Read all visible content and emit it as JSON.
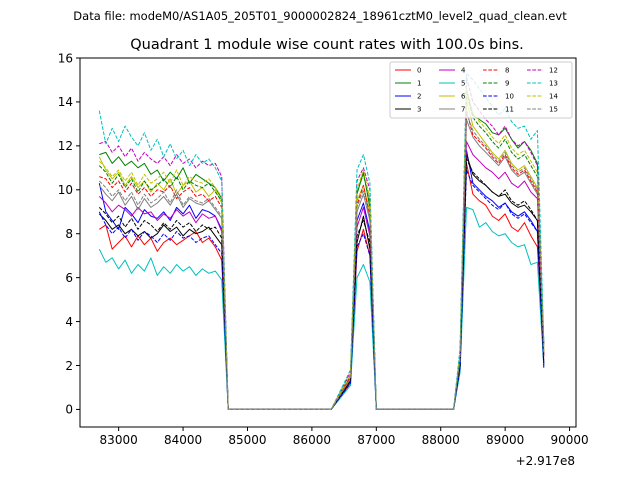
{
  "chart_data": {
    "type": "line",
    "suptitle": "Data file: modeM0/AS1A05_205T01_9000002824_18961cztM0_level2_quad_clean.evt",
    "title": "Quadrant 1 module wise count rates with 100.0s bins.",
    "xlabel": "",
    "ylabel": "",
    "x_offset_label": "+2.917e8",
    "xlim": [
      82400,
      90100
    ],
    "ylim": [
      -0.8,
      16
    ],
    "x_ticks": [
      83000,
      84000,
      85000,
      86000,
      87000,
      88000,
      89000,
      90000
    ],
    "x_tick_labels": [
      "83000",
      "84000",
      "85000",
      "86000",
      "87000",
      "88000",
      "89000",
      "90000"
    ],
    "y_ticks": [
      0,
      2,
      4,
      6,
      8,
      10,
      12,
      14,
      16
    ],
    "y_tick_labels": [
      "0",
      "2",
      "4",
      "6",
      "8",
      "10",
      "12",
      "14",
      "16"
    ],
    "legend_position": "top-right",
    "legend_columns": 4,
    "segments": [
      {
        "start": 82700,
        "points": 20
      },
      {
        "start": 84700,
        "points": 17
      },
      {
        "start": 86600,
        "points": 4
      },
      {
        "start": 87000,
        "points": 13
      },
      {
        "start": 88300,
        "points": 14
      }
    ],
    "series": [
      {
        "name": "0",
        "color": "#ff0000",
        "dash": "solid",
        "values": [
          8.2,
          8.4,
          7.3,
          7.6,
          7.9,
          7.4,
          7.9,
          7.5,
          7.8,
          7.2,
          7.6,
          7.8,
          7.5,
          7.7,
          7.9,
          8.1,
          7.6,
          7.8,
          7.4,
          6.8,
          0,
          0,
          0,
          0,
          0,
          0,
          0,
          0,
          0,
          0,
          0,
          0,
          0,
          0,
          0,
          0,
          0,
          1.2,
          7.2,
          8.2,
          7.0,
          0,
          0,
          0,
          0,
          0,
          0,
          0,
          0,
          0,
          0,
          0,
          0,
          0,
          1.9,
          11.2,
          9.8,
          9.5,
          9.3,
          8.8,
          8.6,
          8.9,
          8.3,
          8.1,
          8.5,
          7.9,
          7.4,
          2.5
        ]
      },
      {
        "name": "1",
        "color": "#008000",
        "dash": "solid",
        "values": [
          11.6,
          11.7,
          11.2,
          11.5,
          11.1,
          11.3,
          11.0,
          11.2,
          10.7,
          10.9,
          10.4,
          10.8,
          10.5,
          11.0,
          10.3,
          10.7,
          10.5,
          10.3,
          10.1,
          9.6,
          0,
          0,
          0,
          0,
          0,
          0,
          0,
          0,
          0,
          0,
          0,
          0,
          0,
          0,
          0,
          0,
          0,
          1.5,
          9.8,
          10.8,
          9.2,
          0,
          0,
          0,
          0,
          0,
          0,
          0,
          0,
          0,
          0,
          0,
          0,
          0,
          2.5,
          14.6,
          13.4,
          13.2,
          13.0,
          12.6,
          12.5,
          12.8,
          12.3,
          11.9,
          12.2,
          11.8,
          11.2,
          3.0
        ]
      },
      {
        "name": "2",
        "color": "#0000ff",
        "dash": "solid",
        "values": [
          10.3,
          9.0,
          8.6,
          8.2,
          9.2,
          8.9,
          8.5,
          9.1,
          8.8,
          8.7,
          9.0,
          8.6,
          9.2,
          8.9,
          9.3,
          8.7,
          9.1,
          9.0,
          8.8,
          8.2,
          0,
          0,
          0,
          0,
          0,
          0,
          0,
          0,
          0,
          0,
          0,
          0,
          0,
          0,
          0,
          0,
          0,
          1.4,
          8.6,
          9.4,
          8.1,
          0,
          0,
          0,
          0,
          0,
          0,
          0,
          0,
          0,
          0,
          0,
          0,
          0,
          2.1,
          11.8,
          10.3,
          10.0,
          9.7,
          9.5,
          9.2,
          9.4,
          9.0,
          8.8,
          9.0,
          8.6,
          8.1,
          1.9
        ]
      },
      {
        "name": "3",
        "color": "#000000",
        "dash": "solid",
        "values": [
          8.9,
          8.6,
          8.2,
          8.4,
          8.0,
          8.2,
          7.9,
          8.1,
          7.8,
          8.0,
          8.4,
          8.1,
          8.3,
          7.9,
          8.2,
          8.0,
          8.1,
          8.3,
          7.9,
          7.5,
          0,
          0,
          0,
          0,
          0,
          0,
          0,
          0,
          0,
          0,
          0,
          0,
          0,
          0,
          0,
          0,
          0,
          1.3,
          7.6,
          8.8,
          7.3,
          0,
          0,
          0,
          0,
          0,
          0,
          0,
          0,
          0,
          0,
          0,
          0,
          0,
          2.0,
          11.6,
          10.7,
          10.4,
          10.2,
          9.9,
          9.7,
          9.8,
          9.4,
          9.2,
          9.3,
          9.0,
          8.6,
          2.1
        ]
      },
      {
        "name": "4",
        "color": "#bf00bf",
        "dash": "solid",
        "values": [
          9.7,
          9.4,
          9.0,
          9.3,
          9.1,
          8.8,
          9.2,
          8.9,
          9.0,
          8.6,
          8.9,
          8.7,
          9.1,
          8.8,
          9.0,
          8.5,
          8.9,
          8.7,
          8.8,
          8.1,
          0,
          0,
          0,
          0,
          0,
          0,
          0,
          0,
          0,
          0,
          0,
          0,
          0,
          0,
          0,
          0,
          0,
          1.5,
          8.3,
          9.2,
          7.9,
          0,
          0,
          0,
          0,
          0,
          0,
          0,
          0,
          0,
          0,
          0,
          0,
          0,
          2.2,
          12.2,
          11.6,
          11.3,
          11.0,
          10.8,
          10.5,
          10.8,
          10.3,
          10.1,
          10.4,
          9.9,
          9.6,
          2.4
        ]
      },
      {
        "name": "5",
        "color": "#00bfbf",
        "dash": "solid",
        "values": [
          7.3,
          6.7,
          6.9,
          6.4,
          6.8,
          6.2,
          6.6,
          6.3,
          6.9,
          6.1,
          6.5,
          6.2,
          6.6,
          6.3,
          6.5,
          6.1,
          6.4,
          6.2,
          6.3,
          5.9,
          0,
          0,
          0,
          0,
          0,
          0,
          0,
          0,
          0,
          0,
          0,
          0,
          0,
          0,
          0,
          0,
          0,
          1.1,
          6.0,
          6.6,
          5.8,
          0,
          0,
          0,
          0,
          0,
          0,
          0,
          0,
          0,
          0,
          0,
          0,
          0,
          1.7,
          9.2,
          9.1,
          8.3,
          8.5,
          8.1,
          7.9,
          8.0,
          7.6,
          7.4,
          7.5,
          6.6,
          6.7,
          2.0
        ]
      },
      {
        "name": "6",
        "color": "#bfbf00",
        "dash": "solid",
        "values": [
          11.5,
          10.9,
          10.5,
          10.8,
          10.2,
          10.6,
          10.1,
          10.4,
          9.9,
          10.3,
          10.0,
          10.5,
          9.8,
          10.2,
          10.4,
          9.9,
          10.1,
          9.7,
          10.0,
          9.4,
          0,
          0,
          0,
          0,
          0,
          0,
          0,
          0,
          0,
          0,
          0,
          0,
          0,
          0,
          0,
          0,
          0,
          1.5,
          9.5,
          10.2,
          9.0,
          0,
          0,
          0,
          0,
          0,
          0,
          0,
          0,
          0,
          0,
          0,
          0,
          0,
          2.4,
          14.1,
          12.9,
          12.5,
          12.1,
          11.7,
          11.4,
          11.8,
          11.2,
          10.9,
          11.1,
          10.6,
          10.1,
          2.6
        ]
      },
      {
        "name": "7",
        "color": "#808080",
        "dash": "solid",
        "values": [
          10.2,
          9.8,
          9.5,
          9.9,
          9.3,
          9.7,
          9.1,
          9.6,
          9.2,
          9.4,
          9.7,
          9.3,
          9.8,
          9.2,
          9.6,
          9.4,
          9.3,
          9.5,
          9.1,
          8.7,
          0,
          0,
          0,
          0,
          0,
          0,
          0,
          0,
          0,
          0,
          0,
          0,
          0,
          0,
          0,
          0,
          0,
          1.4,
          9.0,
          9.8,
          8.6,
          0,
          0,
          0,
          0,
          0,
          0,
          0,
          0,
          0,
          0,
          0,
          0,
          0,
          2.3,
          13.2,
          12.4,
          12.0,
          11.7,
          11.4,
          11.1,
          11.5,
          10.9,
          10.6,
          10.8,
          10.3,
          9.8,
          2.5
        ]
      },
      {
        "name": "8",
        "color": "#ff0000",
        "dash": "dashed",
        "values": [
          10.6,
          10.5,
          10.1,
          10.4,
          9.9,
          10.3,
          9.8,
          10.1,
          9.7,
          10.0,
          9.9,
          10.2,
          9.6,
          9.9,
          10.1,
          9.7,
          9.8,
          9.5,
          9.7,
          9.2,
          0,
          0,
          0,
          0,
          0,
          0,
          0,
          0,
          0,
          0,
          0,
          0,
          0,
          0,
          0,
          0,
          0,
          1.5,
          9.3,
          10.2,
          8.8,
          0,
          0,
          0,
          0,
          0,
          0,
          0,
          0,
          0,
          0,
          0,
          0,
          0,
          2.3,
          13.6,
          12.5,
          12.2,
          11.9,
          11.5,
          11.2,
          11.6,
          11.0,
          10.7,
          10.9,
          10.4,
          9.9,
          2.4
        ]
      },
      {
        "name": "9",
        "color": "#008000",
        "dash": "dashed",
        "values": [
          11.1,
          10.8,
          10.3,
          10.7,
          10.1,
          10.5,
          9.9,
          10.4,
          10.0,
          10.2,
          10.5,
          10.1,
          10.6,
          10.0,
          10.4,
          10.2,
          10.1,
          10.3,
          9.9,
          9.5,
          0,
          0,
          0,
          0,
          0,
          0,
          0,
          0,
          0,
          0,
          0,
          0,
          0,
          0,
          0,
          0,
          0,
          1.6,
          9.9,
          10.7,
          9.4,
          0,
          0,
          0,
          0,
          0,
          0,
          0,
          0,
          0,
          0,
          0,
          0,
          0,
          2.5,
          14.4,
          13.3,
          12.9,
          12.6,
          12.2,
          11.9,
          12.3,
          11.7,
          11.4,
          11.6,
          11.1,
          10.6,
          2.7
        ]
      },
      {
        "name": "10",
        "color": "#0000ff",
        "dash": "dashed",
        "values": [
          9.0,
          8.4,
          8.0,
          8.3,
          7.8,
          8.2,
          7.7,
          8.1,
          7.9,
          7.6,
          8.0,
          7.7,
          8.1,
          7.8,
          7.9,
          7.6,
          7.8,
          7.9,
          7.5,
          7.1,
          0,
          0,
          0,
          0,
          0,
          0,
          0,
          0,
          0,
          0,
          0,
          0,
          0,
          0,
          0,
          0,
          0,
          1.2,
          7.4,
          8.0,
          7.0,
          0,
          0,
          0,
          0,
          0,
          0,
          0,
          0,
          0,
          0,
          0,
          0,
          0,
          1.9,
          10.9,
          10.2,
          9.9,
          9.6,
          9.3,
          9.1,
          9.4,
          8.9,
          8.7,
          8.9,
          8.5,
          8.1,
          2.0
        ]
      },
      {
        "name": "11",
        "color": "#000000",
        "dash": "dashed",
        "values": [
          9.2,
          8.9,
          8.5,
          8.8,
          8.3,
          8.7,
          8.2,
          8.6,
          8.4,
          8.1,
          8.5,
          8.2,
          8.6,
          8.3,
          8.5,
          8.1,
          8.4,
          8.2,
          8.3,
          7.8,
          0,
          0,
          0,
          0,
          0,
          0,
          0,
          0,
          0,
          0,
          0,
          0,
          0,
          0,
          0,
          0,
          0,
          1.3,
          7.9,
          8.6,
          7.6,
          0,
          0,
          0,
          0,
          0,
          0,
          0,
          0,
          0,
          0,
          0,
          0,
          0,
          2.0,
          11.4,
          10.8,
          10.5,
          10.2,
          9.9,
          9.7,
          10.0,
          9.5,
          9.3,
          9.5,
          9.1,
          8.6,
          2.1
        ]
      },
      {
        "name": "12",
        "color": "#bf00bf",
        "dash": "dashed",
        "values": [
          12.1,
          12.2,
          11.7,
          12.0,
          11.5,
          11.9,
          11.3,
          11.7,
          11.4,
          11.2,
          11.5,
          11.1,
          11.6,
          11.2,
          11.4,
          11.0,
          11.3,
          11.1,
          11.2,
          10.6,
          0,
          0,
          0,
          0,
          0,
          0,
          0,
          0,
          0,
          0,
          0,
          0,
          0,
          0,
          0,
          0,
          0,
          1.7,
          10.4,
          11.0,
          10.0,
          0,
          0,
          0,
          0,
          0,
          0,
          0,
          0,
          0,
          0,
          0,
          0,
          0,
          2.7,
          15.1,
          14.0,
          13.6,
          13.2,
          12.9,
          12.5,
          12.9,
          12.3,
          12.0,
          12.2,
          11.7,
          11.1,
          2.9
        ]
      },
      {
        "name": "13",
        "color": "#00bfbf",
        "dash": "dashed",
        "values": [
          13.6,
          12.1,
          12.8,
          12.2,
          12.9,
          12.4,
          12.0,
          12.6,
          11.8,
          12.3,
          11.5,
          12.1,
          11.4,
          11.8,
          11.1,
          11.6,
          11.2,
          11.4,
          11.0,
          10.4,
          0,
          0,
          0,
          0,
          0,
          0,
          0,
          0,
          0,
          0,
          0,
          0,
          0,
          0,
          0,
          0,
          0,
          1.8,
          10.9,
          11.6,
          10.3,
          0,
          0,
          0,
          0,
          0,
          0,
          0,
          0,
          0,
          0,
          0,
          0,
          0,
          2.8,
          15.3,
          15.0,
          14.6,
          14.2,
          13.8,
          13.4,
          13.7,
          13.1,
          12.8,
          12.9,
          12.3,
          12.7,
          3.1
        ]
      },
      {
        "name": "14",
        "color": "#bfbf00",
        "dash": "dashed",
        "values": [
          11.3,
          11.0,
          10.6,
          10.9,
          10.4,
          10.8,
          10.2,
          10.7,
          10.3,
          10.5,
          10.8,
          10.3,
          10.9,
          10.2,
          10.6,
          10.4,
          10.3,
          10.5,
          10.1,
          9.7,
          0,
          0,
          0,
          0,
          0,
          0,
          0,
          0,
          0,
          0,
          0,
          0,
          0,
          0,
          0,
          0,
          0,
          1.6,
          10.0,
          10.9,
          9.6,
          0,
          0,
          0,
          0,
          0,
          0,
          0,
          0,
          0,
          0,
          0,
          0,
          0,
          2.5,
          14.6,
          13.5,
          13.1,
          12.8,
          12.4,
          12.1,
          12.5,
          11.9,
          11.6,
          11.8,
          11.3,
          10.8,
          2.7
        ]
      },
      {
        "name": "15",
        "color": "#808080",
        "dash": "dashed",
        "values": [
          10.4,
          10.1,
          9.7,
          10.0,
          9.5,
          9.9,
          9.3,
          9.8,
          9.4,
          9.6,
          9.9,
          9.4,
          10.0,
          9.3,
          9.7,
          9.5,
          9.4,
          9.6,
          9.2,
          8.8,
          0,
          0,
          0,
          0,
          0,
          0,
          0,
          0,
          0,
          0,
          0,
          0,
          0,
          0,
          0,
          0,
          0,
          1.4,
          9.2,
          10.0,
          8.7,
          0,
          0,
          0,
          0,
          0,
          0,
          0,
          0,
          0,
          0,
          0,
          0,
          0,
          2.3,
          13.5,
          12.7,
          12.3,
          12.0,
          11.6,
          11.3,
          11.7,
          11.1,
          10.8,
          11.0,
          10.5,
          10.0,
          2.5
        ]
      }
    ]
  }
}
